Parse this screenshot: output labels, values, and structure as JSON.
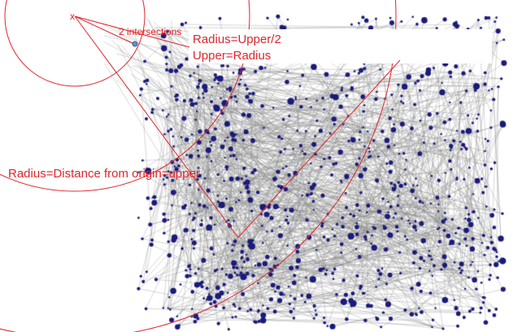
{
  "annotations": {
    "intersections": "2 intersections",
    "radius_upper_half": "Radius=Upper/2",
    "upper_radius": "Upper=Radius",
    "radius_distance": "Radius=Distance from origin=upper",
    "origin_marker": "x"
  },
  "colors": {
    "annotation": "#e0242b",
    "node": "#1a1a7a",
    "edge": "#9a9a9a",
    "highlight_point": "#5b8fd6",
    "background": "#ffffff"
  },
  "graph": {
    "node_count": 900,
    "edge_count": 1100
  }
}
